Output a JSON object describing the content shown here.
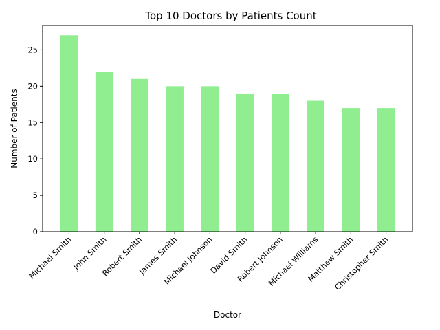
{
  "chart_data": {
    "type": "bar",
    "title": "Top 10 Doctors by Patients Count",
    "xlabel": "Doctor",
    "ylabel": "Number of Patients",
    "categories": [
      "Michael Smith",
      "John Smith",
      "Robert Smith",
      "James Smith",
      "Michael Johnson",
      "David Smith",
      "Robert Johnson",
      "Michael Williams",
      "Matthew Smith",
      "Christopher Smith"
    ],
    "values": [
      27,
      22,
      21,
      20,
      20,
      19,
      19,
      18,
      17,
      17
    ],
    "ylim": [
      0,
      28.35
    ],
    "yticks": [
      0,
      5,
      10,
      15,
      20,
      25
    ],
    "bar_color": "#90ee90",
    "grid": false,
    "legend": "none"
  }
}
